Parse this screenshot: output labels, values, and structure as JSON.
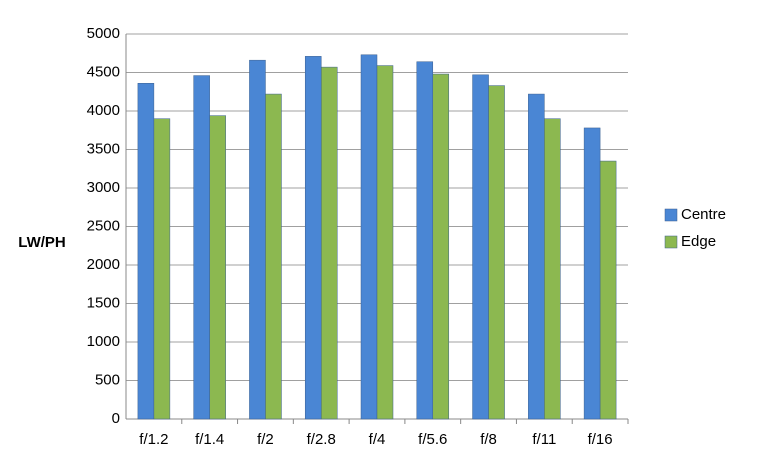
{
  "chart_data": {
    "type": "bar",
    "y_label": "LW/PH",
    "categories": [
      "f/1.2",
      "f/1.4",
      "f/2",
      "f/2.8",
      "f/4",
      "f/5.6",
      "f/8",
      "f/11",
      "f/16"
    ],
    "series": [
      {
        "name": "Centre",
        "color": "#4a86d4",
        "values": [
          4360,
          4460,
          4660,
          4710,
          4730,
          4640,
          4470,
          4220,
          3780
        ]
      },
      {
        "name": "Edge",
        "color": "#8cb850",
        "values": [
          3900,
          3940,
          4220,
          4570,
          4590,
          4480,
          4330,
          3900,
          3350
        ]
      }
    ],
    "ylim": [
      0,
      5000
    ],
    "yticks": [
      0,
      500,
      1000,
      1500,
      2000,
      2500,
      3000,
      3500,
      4000,
      4500,
      5000
    ],
    "grid": true,
    "legend": "right"
  }
}
